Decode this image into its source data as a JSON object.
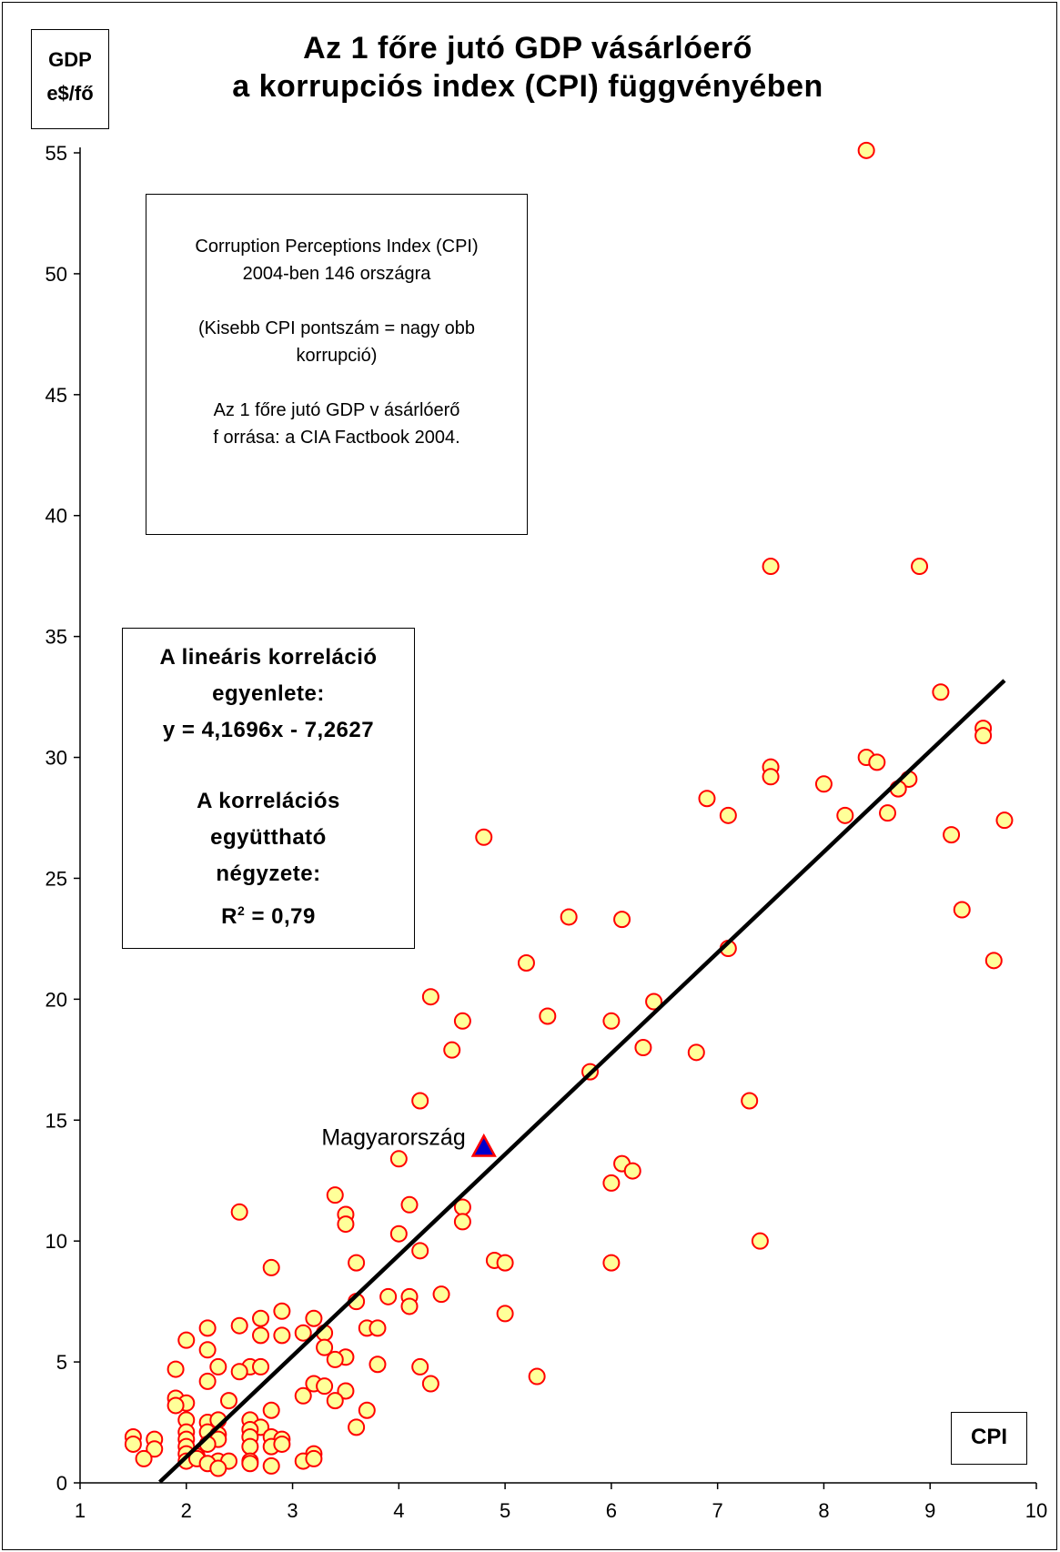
{
  "chart_data": {
    "type": "scatter",
    "title_line1": "Az 1 főre jutó GDP vásárlóerő",
    "title_line2": "a korrupciós index (CPI)  függvényében",
    "ylabel_line1": "GDP",
    "ylabel_line2": "e$/fő",
    "xlabel": "CPI",
    "xlim": [
      1,
      10
    ],
    "ylim": [
      0,
      55
    ],
    "x_ticks": [
      1,
      2,
      3,
      4,
      5,
      6,
      7,
      8,
      9,
      10
    ],
    "y_ticks": [
      0,
      5,
      10,
      15,
      20,
      25,
      30,
      35,
      40,
      45,
      50,
      55
    ],
    "grid": false,
    "marker_fill": "#ffff99",
    "marker_edge": "#ff0000",
    "trendline": {
      "slope": 4.1696,
      "intercept": -7.2627,
      "x_range": [
        1.75,
        9.7
      ],
      "color": "#000000"
    },
    "highlight": {
      "label": "Magyarország",
      "x": 4.8,
      "y": 13.9,
      "fill": "#0000cc",
      "edge": "#ff0000"
    },
    "points": [
      [
        8.4,
        55.1
      ],
      [
        7.5,
        37.9
      ],
      [
        8.9,
        37.9
      ],
      [
        9.1,
        32.7
      ],
      [
        9.5,
        31.2
      ],
      [
        9.5,
        30.9
      ],
      [
        8.4,
        30.0
      ],
      [
        8.5,
        29.8
      ],
      [
        7.5,
        29.6
      ],
      [
        7.5,
        29.2
      ],
      [
        8.0,
        28.9
      ],
      [
        8.8,
        29.1
      ],
      [
        8.7,
        28.7
      ],
      [
        6.9,
        28.3
      ],
      [
        7.1,
        27.6
      ],
      [
        8.2,
        27.6
      ],
      [
        8.6,
        27.7
      ],
      [
        9.7,
        27.4
      ],
      [
        9.2,
        26.8
      ],
      [
        4.8,
        26.7
      ],
      [
        5.6,
        23.4
      ],
      [
        6.1,
        23.3
      ],
      [
        9.3,
        23.7
      ],
      [
        7.1,
        22.1
      ],
      [
        5.2,
        21.5
      ],
      [
        9.6,
        21.6
      ],
      [
        4.3,
        20.1
      ],
      [
        6.4,
        19.9
      ],
      [
        5.4,
        19.3
      ],
      [
        4.6,
        19.1
      ],
      [
        6.0,
        19.1
      ],
      [
        4.5,
        17.9
      ],
      [
        6.3,
        18.0
      ],
      [
        6.8,
        17.8
      ],
      [
        5.8,
        17.0
      ],
      [
        4.2,
        15.8
      ],
      [
        7.3,
        15.8
      ],
      [
        4.0,
        13.4
      ],
      [
        6.1,
        13.2
      ],
      [
        6.2,
        12.9
      ],
      [
        6.0,
        12.4
      ],
      [
        3.4,
        11.9
      ],
      [
        4.1,
        11.5
      ],
      [
        4.6,
        11.4
      ],
      [
        2.5,
        11.2
      ],
      [
        3.5,
        11.1
      ],
      [
        3.5,
        10.7
      ],
      [
        4.6,
        10.8
      ],
      [
        4.0,
        10.3
      ],
      [
        7.4,
        10.0
      ],
      [
        4.2,
        9.6
      ],
      [
        4.9,
        9.2
      ],
      [
        5.0,
        9.1
      ],
      [
        3.6,
        9.1
      ],
      [
        6.0,
        9.1
      ],
      [
        2.8,
        8.9
      ],
      [
        4.4,
        7.8
      ],
      [
        3.9,
        7.7
      ],
      [
        4.1,
        7.7
      ],
      [
        3.6,
        7.5
      ],
      [
        4.1,
        7.3
      ],
      [
        2.9,
        7.1
      ],
      [
        5.0,
        7.0
      ],
      [
        2.7,
        6.8
      ],
      [
        3.2,
        6.8
      ],
      [
        2.5,
        6.5
      ],
      [
        2.2,
        6.4
      ],
      [
        3.7,
        6.4
      ],
      [
        3.8,
        6.4
      ],
      [
        3.1,
        6.2
      ],
      [
        3.3,
        6.2
      ],
      [
        2.7,
        6.1
      ],
      [
        2.9,
        6.1
      ],
      [
        2.0,
        5.9
      ],
      [
        3.3,
        5.6
      ],
      [
        2.2,
        5.5
      ],
      [
        3.5,
        5.2
      ],
      [
        3.4,
        5.1
      ],
      [
        3.8,
        4.9
      ],
      [
        4.2,
        4.8
      ],
      [
        2.3,
        4.8
      ],
      [
        2.6,
        4.8
      ],
      [
        2.7,
        4.8
      ],
      [
        1.9,
        4.7
      ],
      [
        2.5,
        4.6
      ],
      [
        5.3,
        4.4
      ],
      [
        2.2,
        4.2
      ],
      [
        4.3,
        4.1
      ],
      [
        3.2,
        4.1
      ],
      [
        3.3,
        4.0
      ],
      [
        3.5,
        3.8
      ],
      [
        3.1,
        3.6
      ],
      [
        1.9,
        3.5
      ],
      [
        3.4,
        3.4
      ],
      [
        2.4,
        3.4
      ],
      [
        2.0,
        3.3
      ],
      [
        1.9,
        3.2
      ],
      [
        2.8,
        3.0
      ],
      [
        3.7,
        3.0
      ],
      [
        2.0,
        2.6
      ],
      [
        2.2,
        2.5
      ],
      [
        2.3,
        2.6
      ],
      [
        2.6,
        2.6
      ],
      [
        2.7,
        2.3
      ],
      [
        2.6,
        2.2
      ],
      [
        3.6,
        2.3
      ],
      [
        2.0,
        2.1
      ],
      [
        2.2,
        2.1
      ],
      [
        2.3,
        2.0
      ],
      [
        2.6,
        1.9
      ],
      [
        2.8,
        1.9
      ],
      [
        1.5,
        1.9
      ],
      [
        1.7,
        1.8
      ],
      [
        2.0,
        1.8
      ],
      [
        2.3,
        1.8
      ],
      [
        2.9,
        1.8
      ],
      [
        1.5,
        1.6
      ],
      [
        2.0,
        1.5
      ],
      [
        2.2,
        1.6
      ],
      [
        2.6,
        1.5
      ],
      [
        2.8,
        1.5
      ],
      [
        2.9,
        1.6
      ],
      [
        1.7,
        1.4
      ],
      [
        2.0,
        1.2
      ],
      [
        2.1,
        1.1
      ],
      [
        3.2,
        1.2
      ],
      [
        1.6,
        1.0
      ],
      [
        2.0,
        0.9
      ],
      [
        2.1,
        1.0
      ],
      [
        2.3,
        0.9
      ],
      [
        2.4,
        0.9
      ],
      [
        2.6,
        0.9
      ],
      [
        3.1,
        0.9
      ],
      [
        3.2,
        1.0
      ],
      [
        2.2,
        0.8
      ],
      [
        2.6,
        0.8
      ],
      [
        2.8,
        0.7
      ],
      [
        2.3,
        0.6
      ]
    ]
  },
  "note_box": {
    "line1": "Corruption Perceptions Index (CPI)",
    "line2": "2004-ben 146 országra",
    "line3": "(Kisebb CPI pontszám = nagy obb",
    "line4": "korrupció)",
    "line5": "Az 1 főre jutó GDP v ásárlóerő",
    "line6": "f orrása:  a CIA Factbook 2004."
  },
  "equation_box": {
    "line1": "A lineáris korreláció",
    "line2": "egyenlete:",
    "line3": "y = 4,1696x - 7,2627",
    "line4": "A korrelációs",
    "line5": "együttható",
    "line6": "négyzete:",
    "line7_prefix": "R",
    "line7_sup": "2",
    "line7_suffix": " = 0,79"
  }
}
